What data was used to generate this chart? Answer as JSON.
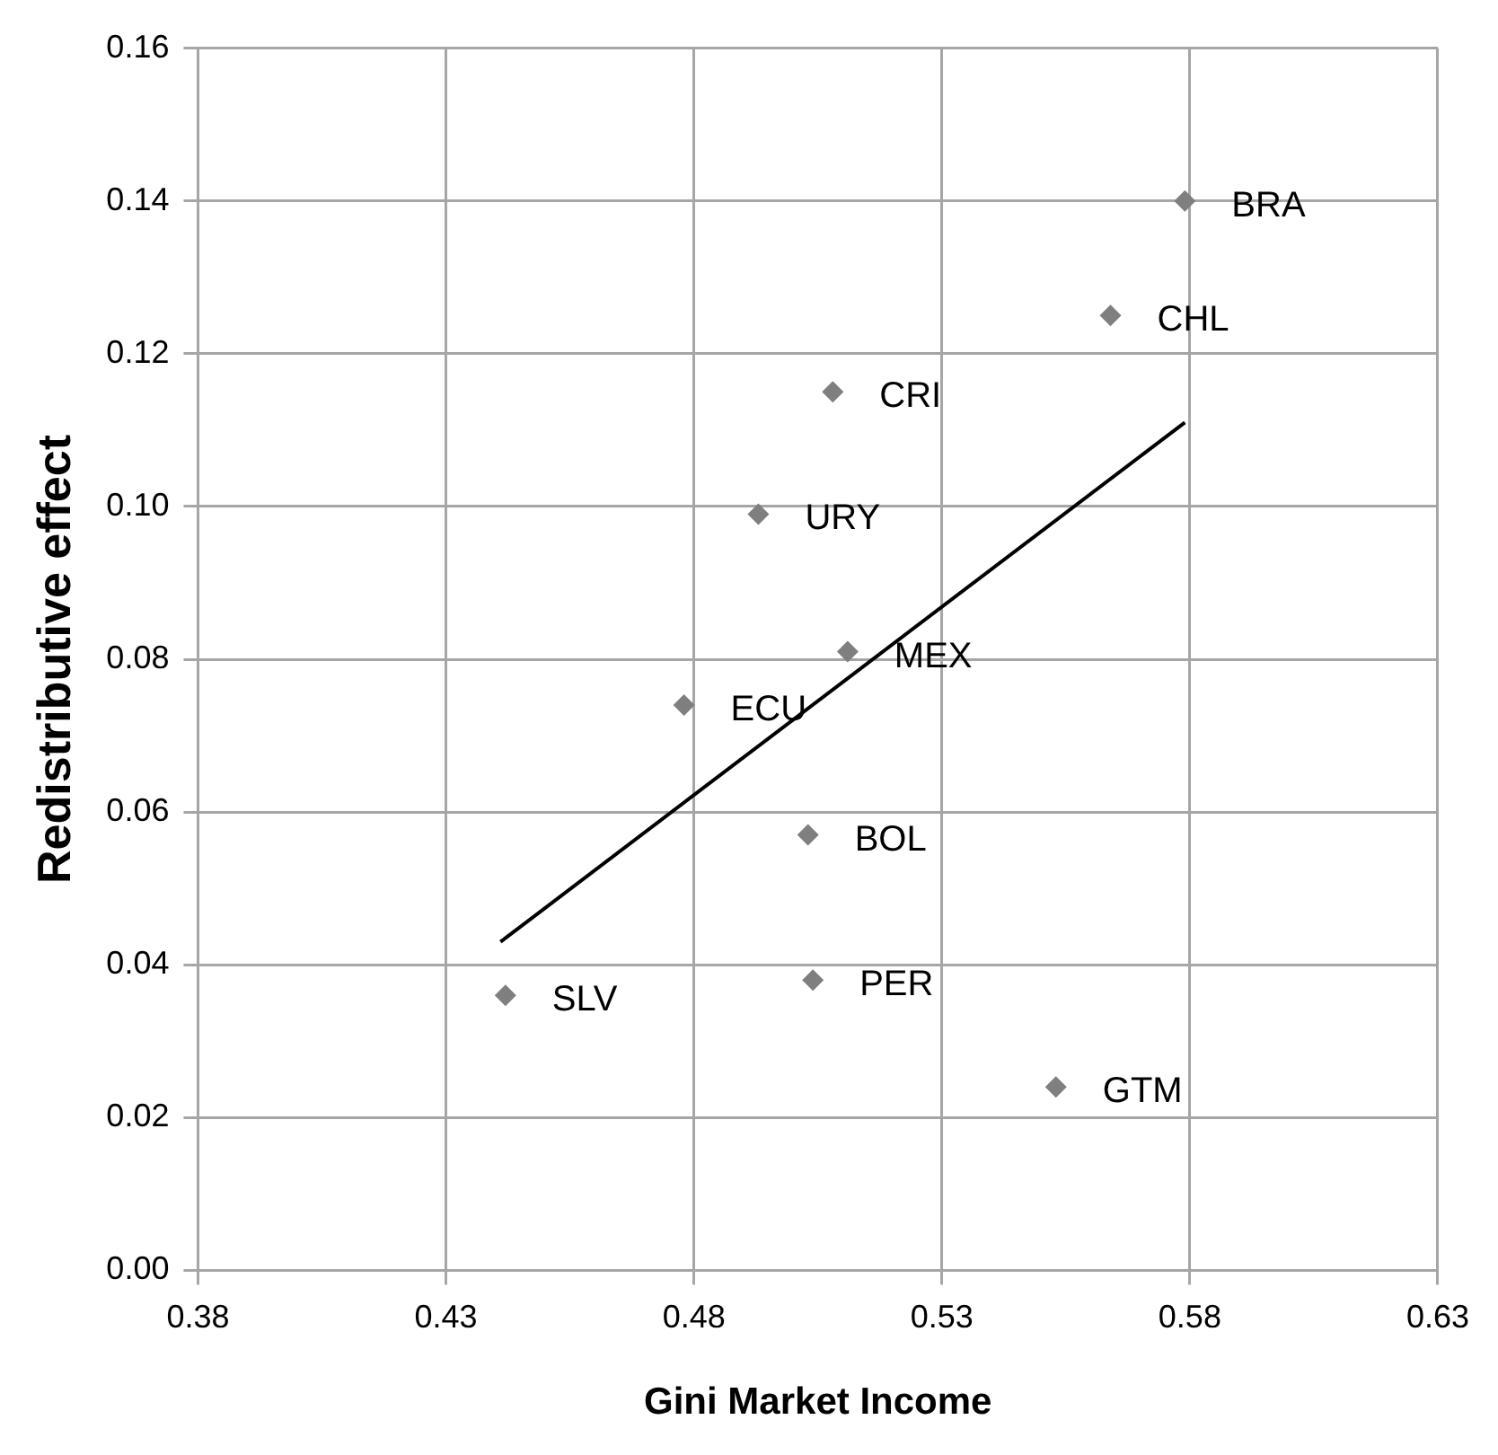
{
  "chart_data": {
    "type": "scatter",
    "xlabel": "Gini Market Income",
    "ylabel": "Redistributive effect",
    "series": [
      {
        "type": "scatter",
        "color": "#7f7f7f",
        "x": [
          0.579,
          0.564,
          0.508,
          0.493,
          0.511,
          0.478,
          0.503,
          0.504,
          0.442,
          0.553
        ],
        "values": [
          0.14,
          0.125,
          0.115,
          0.099,
          0.081,
          0.074,
          0.057,
          0.038,
          0.036,
          0.024
        ]
      },
      {
        "type": "line",
        "color": "#000000",
        "marker": "none",
        "x": [
          0.441,
          0.579
        ],
        "values": [
          0.043,
          0.111
        ]
      }
    ],
    "annotations": [
      {
        "text": "BRA",
        "x": 0.579,
        "y": 0.14
      },
      {
        "text": "CHL",
        "x": 0.564,
        "y": 0.125
      },
      {
        "text": "CRI",
        "x": 0.508,
        "y": 0.115
      },
      {
        "text": "URY",
        "x": 0.493,
        "y": 0.099
      },
      {
        "text": "MEX",
        "x": 0.511,
        "y": 0.081
      },
      {
        "text": "ECU",
        "x": 0.478,
        "y": 0.074
      },
      {
        "text": "BOL",
        "x": 0.503,
        "y": 0.057
      },
      {
        "text": "PER",
        "x": 0.504,
        "y": 0.038
      },
      {
        "text": "SLV",
        "x": 0.442,
        "y": 0.036
      },
      {
        "text": "GTM",
        "x": 0.553,
        "y": 0.024
      }
    ],
    "xlim": [
      0.38,
      0.63
    ],
    "xticks": [
      {
        "value": 0.38,
        "label": "0.38"
      },
      {
        "value": 0.43,
        "label": "0.43"
      },
      {
        "value": 0.48,
        "label": "0.48"
      },
      {
        "value": 0.53,
        "label": "0.53"
      },
      {
        "value": 0.58,
        "label": "0.58"
      },
      {
        "value": 0.63,
        "label": "0.63"
      }
    ],
    "ylim": [
      0,
      0.16
    ],
    "yticks": [
      {
        "value": 0,
        "label": "0.00"
      },
      {
        "value": 0.02,
        "label": "0.02"
      },
      {
        "value": 0.04,
        "label": "0.04"
      },
      {
        "value": 0.06,
        "label": "0.06"
      },
      {
        "value": 0.08,
        "label": "0.08"
      },
      {
        "value": 0.1,
        "label": "0.10"
      },
      {
        "value": 0.12,
        "label": "0.12"
      },
      {
        "value": 0.14,
        "label": "0.14"
      },
      {
        "value": 0.16,
        "label": "0.16"
      }
    ],
    "grid": true,
    "legend": false,
    "marker": "diamond"
  }
}
